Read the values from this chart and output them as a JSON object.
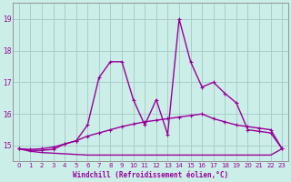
{
  "xlabel": "Windchill (Refroidissement éolien,°C)",
  "background_color": "#cceee8",
  "grid_color": "#aacccc",
  "line_color": "#990099",
  "xlim": [
    -0.5,
    23.5
  ],
  "ylim": [
    14.5,
    19.5
  ],
  "yticks": [
    15,
    16,
    17,
    18,
    19
  ],
  "xticks": [
    0,
    1,
    2,
    3,
    4,
    5,
    6,
    7,
    8,
    9,
    10,
    11,
    12,
    13,
    14,
    15,
    16,
    17,
    18,
    19,
    20,
    21,
    22,
    23
  ],
  "series": [
    {
      "x": [
        0,
        1,
        2,
        3,
        4,
        5,
        6,
        7,
        8,
        9,
        10,
        11,
        12,
        13,
        14,
        15,
        16,
        17,
        18,
        19,
        20,
        21,
        22,
        23
      ],
      "y": [
        14.9,
        14.85,
        14.85,
        14.88,
        15.05,
        15.15,
        15.65,
        17.15,
        17.65,
        17.65,
        16.45,
        15.65,
        16.45,
        15.35,
        19.0,
        17.65,
        16.85,
        17.0,
        16.65,
        16.35,
        15.5,
        15.45,
        15.4,
        14.9
      ],
      "linewidth": 1.0,
      "marker": "+"
    },
    {
      "x": [
        0,
        1,
        2,
        3,
        4,
        5,
        6,
        7,
        8,
        9,
        10,
        11,
        12,
        13,
        14,
        15,
        16,
        17,
        18,
        19,
        20,
        21,
        22,
        23
      ],
      "y": [
        14.9,
        14.88,
        14.9,
        14.95,
        15.05,
        15.15,
        15.3,
        15.4,
        15.5,
        15.6,
        15.68,
        15.75,
        15.8,
        15.85,
        15.9,
        15.95,
        16.0,
        15.85,
        15.75,
        15.65,
        15.6,
        15.55,
        15.5,
        14.9
      ],
      "linewidth": 1.0,
      "marker": "+"
    },
    {
      "x": [
        0,
        1,
        2,
        3,
        4,
        5,
        6,
        7,
        8,
        9,
        10,
        11,
        12,
        13,
        14,
        15,
        16,
        17,
        18,
        19,
        20,
        21,
        22,
        23
      ],
      "y": [
        14.9,
        14.82,
        14.78,
        14.76,
        14.74,
        14.72,
        14.7,
        14.7,
        14.7,
        14.7,
        14.7,
        14.7,
        14.7,
        14.7,
        14.7,
        14.7,
        14.7,
        14.7,
        14.7,
        14.7,
        14.7,
        14.7,
        14.7,
        14.9
      ],
      "linewidth": 1.0,
      "marker": null
    }
  ]
}
